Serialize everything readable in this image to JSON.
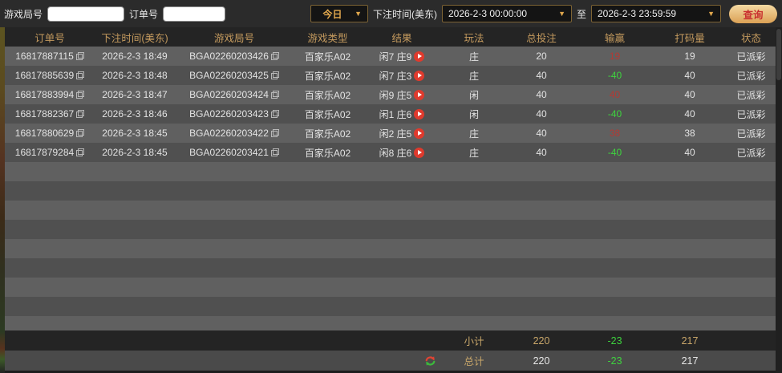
{
  "filters": {
    "game_round_label": "游戏局号",
    "order_no_label": "订单号",
    "game_round_value": "",
    "order_no_value": "",
    "quick_range_value": "今日",
    "bet_time_label": "下注时间(美东)",
    "start_time": "2026-2-3 00:00:00",
    "to_label": "至",
    "end_time": "2026-2-3 23:59:59",
    "search_label": "查询",
    "dropdown_arrow": "▼"
  },
  "table": {
    "columns": [
      "订单号",
      "下注时间(美东)",
      "游戏局号",
      "游戏类型",
      "结果",
      "玩法",
      "总投注",
      "输赢",
      "打码量",
      "状态"
    ],
    "rows": [
      {
        "order_no": "16817887115",
        "bet_time": "2026-2-3 18:49",
        "round_no": "BGA02260203426",
        "game_type": "百家乐A02",
        "result": "闲7 庄9",
        "play": "庄",
        "total_bet": "20",
        "win_loss": "19",
        "win_positive": true,
        "turnover": "19",
        "status": "已派彩"
      },
      {
        "order_no": "16817885639",
        "bet_time": "2026-2-3 18:48",
        "round_no": "BGA02260203425",
        "game_type": "百家乐A02",
        "result": "闲7 庄3",
        "play": "庄",
        "total_bet": "40",
        "win_loss": "-40",
        "win_positive": false,
        "turnover": "40",
        "status": "已派彩"
      },
      {
        "order_no": "16817883994",
        "bet_time": "2026-2-3 18:47",
        "round_no": "BGA02260203424",
        "game_type": "百家乐A02",
        "result": "闲9 庄5",
        "play": "闲",
        "total_bet": "40",
        "win_loss": "40",
        "win_positive": true,
        "turnover": "40",
        "status": "已派彩"
      },
      {
        "order_no": "16817882367",
        "bet_time": "2026-2-3 18:46",
        "round_no": "BGA02260203423",
        "game_type": "百家乐A02",
        "result": "闲1 庄6",
        "play": "闲",
        "total_bet": "40",
        "win_loss": "-40",
        "win_positive": false,
        "turnover": "40",
        "status": "已派彩"
      },
      {
        "order_no": "16817880629",
        "bet_time": "2026-2-3 18:45",
        "round_no": "BGA02260203422",
        "game_type": "百家乐A02",
        "result": "闲2 庄5",
        "play": "庄",
        "total_bet": "40",
        "win_loss": "38",
        "win_positive": true,
        "turnover": "38",
        "status": "已派彩"
      },
      {
        "order_no": "16817879284",
        "bet_time": "2026-2-3 18:45",
        "round_no": "BGA02260203421",
        "game_type": "百家乐A02",
        "result": "闲8 庄6",
        "play": "庄",
        "total_bet": "40",
        "win_loss": "-40",
        "win_positive": false,
        "turnover": "40",
        "status": "已派彩"
      }
    ],
    "subtotal": {
      "label": "小计",
      "total_bet": "220",
      "win_loss": "-23",
      "turnover": "217"
    },
    "total": {
      "label": "总计",
      "total_bet": "220",
      "win_loss": "-23",
      "turnover": "217"
    }
  },
  "colors": {
    "accent_gold": "#c49a5e",
    "win_red": "#b23a34",
    "loss_green": "#3ed33e",
    "search_text_red": "#c92f2f"
  }
}
